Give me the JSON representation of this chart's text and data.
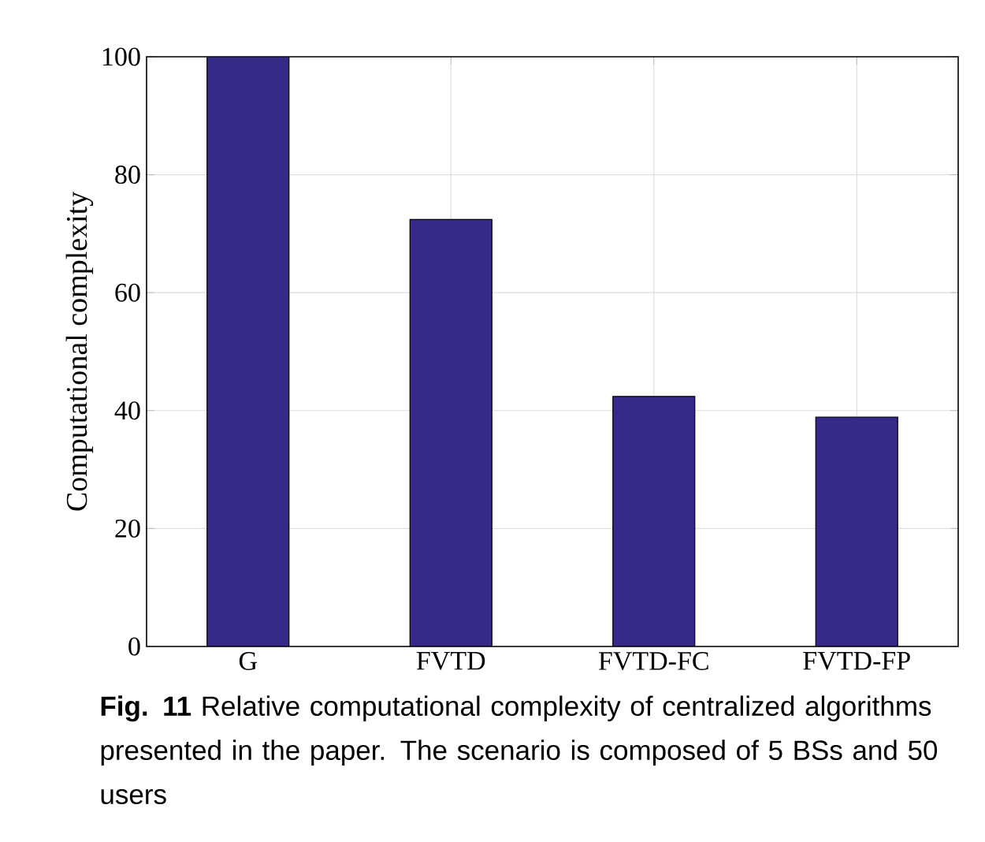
{
  "chart_data": {
    "type": "bar",
    "categories": [
      "G",
      "FVTD",
      "FVTD-FC",
      "FVTD-FP"
    ],
    "values": [
      100,
      72.4,
      42.4,
      38.9
    ],
    "color": "#352a87",
    "ylabel": "Computational complexity",
    "ylim": [
      0,
      100
    ],
    "yticks": [
      0,
      20,
      40,
      60,
      80,
      100
    ],
    "grid": true,
    "annotations": [
      "**Fig. 11** Relative computational complexity of centralized algorithms presented in the paper. The scenario is composed of 5 BSs and 50 users"
    ]
  }
}
